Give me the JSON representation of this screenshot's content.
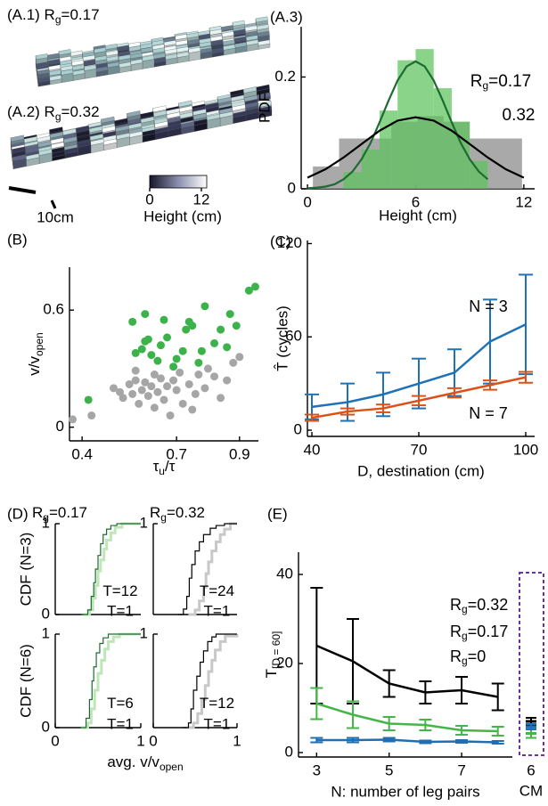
{
  "terrain": [
    {
      "label": [
        "(A.1) R",
        "g",
        "=0.17"
      ]
    },
    {
      "label": [
        "(A.2) R",
        "g",
        "=0.32"
      ]
    }
  ],
  "colorbar": {
    "ticks": [
      0,
      12
    ],
    "label": "Height (cm)"
  },
  "scale_bar": "10cm",
  "panel_d": {
    "label": "(D)",
    "column_titles": [
      [
        "R",
        "g",
        "=0.17"
      ],
      [
        "R",
        "g",
        "=0.32"
      ]
    ],
    "xlabel": [
      "avg. v/v",
      "open"
    ]
  },
  "chart_data": [
    {
      "type": "histogram",
      "label": "(A.3)",
      "ylabel": "PDF",
      "xlabel": "Height (cm)",
      "xlim": [
        -0.35,
        12.6
      ],
      "xticks": [
        0,
        6,
        12
      ],
      "ylim": [
        0,
        0.29
      ],
      "yticks": [
        0,
        0.2
      ],
      "series": [
        {
          "name": [
            "R",
            "g",
            "=0.17"
          ],
          "color": "#5cc45c",
          "line_color": "#1e6b32",
          "bins": [
            2,
            3,
            4,
            5,
            6,
            7,
            8,
            9,
            10
          ],
          "counts": [
            0.03,
            0.07,
            0.14,
            0.23,
            0.25,
            0.18,
            0.12,
            0.05
          ],
          "curve_x": [
            0,
            0.5,
            1,
            1.5,
            2,
            2.5,
            3,
            3.5,
            4,
            4.5,
            5,
            5.5,
            6,
            6.5,
            7,
            7.5,
            8,
            8.5,
            9,
            9.5,
            10
          ],
          "curve_values": [
            0.001,
            0.002,
            0.004,
            0.008,
            0.017,
            0.031,
            0.053,
            0.082,
            0.119,
            0.158,
            0.194,
            0.219,
            0.228,
            0.219,
            0.194,
            0.158,
            0.119,
            0.082,
            0.053,
            0.031,
            0.017
          ]
        },
        {
          "name": "0.32",
          "color": "#9a9a9a",
          "line_color": "#000000",
          "bins": [
            0.3,
            1.75,
            3.2,
            4.65,
            6.1,
            7.55,
            9,
            10.45,
            11.9
          ],
          "counts": [
            0.04,
            0.09,
            0.09,
            0.12,
            0.13,
            0.12,
            0.09,
            0.09
          ],
          "curve_x": [
            0,
            1,
            2,
            3,
            4,
            5,
            6,
            7,
            8,
            9,
            10,
            11,
            12
          ],
          "curve_values": [
            0.02,
            0.035,
            0.056,
            0.08,
            0.104,
            0.122,
            0.128,
            0.122,
            0.104,
            0.08,
            0.056,
            0.035,
            0.02
          ]
        }
      ]
    },
    {
      "type": "scatter",
      "label": "(B)",
      "ylabel": [
        "v/v",
        "open"
      ],
      "xlabel": [
        "τ",
        "u",
        "/τ"
      ],
      "xlim": [
        0.36,
        0.96
      ],
      "xticks": [
        0.4,
        0.7,
        0.9
      ],
      "ylim": [
        -0.07,
        0.82
      ],
      "yticks": [
        0,
        0.6
      ],
      "series": [
        {
          "color": "#3cb34a",
          "x": [
            0.42,
            0.56,
            0.57,
            0.59,
            0.6,
            0.61,
            0.62,
            0.64,
            0.65,
            0.67,
            0.69,
            0.7,
            0.72,
            0.73,
            0.74,
            0.75,
            0.77,
            0.78,
            0.79,
            0.82,
            0.84,
            0.86,
            0.87,
            0.89,
            0.93,
            0.95,
            0.6,
            0.66
          ],
          "values": [
            0.14,
            0.54,
            0.38,
            0.4,
            0.44,
            0.45,
            0.37,
            0.34,
            0.42,
            0.46,
            0.31,
            0.35,
            0.39,
            0.5,
            0.54,
            0.52,
            0.33,
            0.39,
            0.62,
            0.43,
            0.5,
            0.41,
            0.58,
            0.52,
            0.7,
            0.72,
            0.58,
            0.55
          ]
        },
        {
          "color": "#a6a6a6",
          "x": [
            0.37,
            0.43,
            0.5,
            0.52,
            0.53,
            0.55,
            0.56,
            0.57,
            0.58,
            0.59,
            0.6,
            0.61,
            0.62,
            0.63,
            0.64,
            0.65,
            0.66,
            0.67,
            0.68,
            0.7,
            0.71,
            0.72,
            0.74,
            0.75,
            0.77,
            0.79,
            0.8,
            0.82,
            0.84,
            0.86,
            0.88,
            0.9,
            0.57,
            0.63,
            0.69,
            0.76
          ],
          "values": [
            0.04,
            0.06,
            0.2,
            0.18,
            0.15,
            0.22,
            0.17,
            0.24,
            0.12,
            0.19,
            0.23,
            0.16,
            0.21,
            0.1,
            0.18,
            0.25,
            0.14,
            0.21,
            0.06,
            0.19,
            0.28,
            0.12,
            0.22,
            0.09,
            0.27,
            0.2,
            0.3,
            0.26,
            0.15,
            0.24,
            0.33,
            0.36,
            0.29,
            0.27,
            0.24,
            0.17
          ]
        }
      ]
    },
    {
      "type": "errorline",
      "label": "(C)",
      "ylabel": "T̂ (cycles)",
      "xlabel": "D, destination (cm)",
      "xlim": [
        38.75,
        102.5
      ],
      "xticks": [
        40,
        70,
        100
      ],
      "ylim": [
        -4,
        122
      ],
      "yticks": [
        0,
        60,
        120
      ],
      "x": [
        40,
        50,
        60,
        70,
        80,
        90,
        100
      ],
      "series": [
        {
          "name": "N = 3",
          "color": "#2171b5",
          "values": [
            15,
            18,
            23,
            30,
            37,
            57,
            68
          ],
          "errors": [
            8,
            12,
            14,
            16,
            15,
            27,
            32
          ]
        },
        {
          "name": "N = 7",
          "color": "#d95319",
          "values": [
            8,
            12,
            14,
            19,
            24,
            29,
            34
          ],
          "errors": [
            2,
            2,
            2.5,
            3,
            3,
            3,
            3.5
          ]
        }
      ]
    },
    {
      "type": "step",
      "ylabel": "CDF (N=3)",
      "xlim": [
        0,
        1
      ],
      "ylim": [
        0,
        1
      ],
      "yticks": [
        0,
        1
      ],
      "series": [
        {
          "name": "T=12",
          "color": "#1e6b32",
          "x": [
            0.3,
            0.38,
            0.42,
            0.45,
            0.47,
            0.5,
            0.53,
            0.56,
            0.6,
            0.65,
            0.72,
            1
          ],
          "values": [
            0,
            0.05,
            0.2,
            0.35,
            0.5,
            0.65,
            0.78,
            0.88,
            0.94,
            0.98,
            1,
            1
          ]
        },
        {
          "name": "T=1",
          "color": "#bfe6b8",
          "x": [
            0.33,
            0.4,
            0.44,
            0.47,
            0.5,
            0.53,
            0.57,
            0.6,
            0.65,
            0.7,
            0.78,
            1
          ],
          "values": [
            0,
            0.05,
            0.18,
            0.32,
            0.48,
            0.6,
            0.72,
            0.82,
            0.9,
            0.96,
            1,
            1
          ]
        }
      ]
    },
    {
      "type": "step",
      "xlim": [
        0,
        1
      ],
      "ylim": [
        0,
        1
      ],
      "yticks": [
        1
      ],
      "series": [
        {
          "name": "T=24",
          "color": "#000000",
          "x": [
            0.3,
            0.36,
            0.4,
            0.43,
            0.46,
            0.5,
            0.55,
            0.6,
            0.68,
            0.75,
            0.85,
            1
          ],
          "values": [
            0,
            0.06,
            0.2,
            0.4,
            0.55,
            0.7,
            0.8,
            0.88,
            0.95,
            0.98,
            1,
            1
          ]
        },
        {
          "name": "T=1",
          "color": "#c8c8c8",
          "x": [
            0.42,
            0.5,
            0.55,
            0.6,
            0.63,
            0.66,
            0.7,
            0.75,
            0.8,
            0.85,
            0.92,
            1
          ],
          "values": [
            0,
            0.05,
            0.15,
            0.3,
            0.45,
            0.58,
            0.7,
            0.8,
            0.88,
            0.94,
            1,
            1
          ]
        }
      ]
    },
    {
      "type": "step",
      "ylabel": "CDF (N=6)",
      "xlim": [
        0,
        1
      ],
      "ylim": [
        0,
        1
      ],
      "xticks": [
        0,
        1
      ],
      "yticks": [
        0,
        1
      ],
      "series": [
        {
          "name": "T=6",
          "color": "#1e6b32",
          "x": [
            0.3,
            0.36,
            0.4,
            0.43,
            0.45,
            0.48,
            0.52,
            0.56,
            0.62,
            0.7,
            1
          ],
          "values": [
            0,
            0.1,
            0.3,
            0.5,
            0.65,
            0.8,
            0.9,
            0.96,
            1,
            1,
            1
          ]
        },
        {
          "name": "T=1",
          "color": "#bfe6b8",
          "x": [
            0.3,
            0.38,
            0.42,
            0.46,
            0.5,
            0.54,
            0.58,
            0.62,
            0.68,
            0.75,
            1
          ],
          "values": [
            0,
            0.05,
            0.2,
            0.4,
            0.58,
            0.72,
            0.84,
            0.92,
            0.97,
            1,
            1
          ]
        }
      ]
    },
    {
      "type": "step",
      "xlim": [
        0,
        1
      ],
      "ylim": [
        0,
        1
      ],
      "xticks": [
        0,
        1
      ],
      "yticks": [
        1
      ],
      "series": [
        {
          "name": "T=12",
          "color": "#000000",
          "x": [
            0.35,
            0.42,
            0.45,
            0.48,
            0.52,
            0.56,
            0.6,
            0.65,
            0.7,
            0.75,
            1
          ],
          "values": [
            0,
            0.05,
            0.2,
            0.4,
            0.55,
            0.7,
            0.82,
            0.92,
            0.97,
            1,
            1
          ]
        },
        {
          "name": "T=1",
          "color": "#c8c8c8",
          "x": [
            0.4,
            0.48,
            0.53,
            0.58,
            0.62,
            0.66,
            0.7,
            0.74,
            0.8,
            0.86,
            1
          ],
          "values": [
            0,
            0.05,
            0.15,
            0.3,
            0.45,
            0.6,
            0.72,
            0.83,
            0.92,
            0.98,
            1
          ]
        }
      ]
    },
    {
      "type": "errorline",
      "label": "(E)",
      "ylabel": [
        "T",
        "[D = 60]"
      ],
      "xlabel": "N: number of leg pairs",
      "xlim": [
        2.5,
        8.4
      ],
      "xticks": [
        3,
        5,
        7
      ],
      "ylim": [
        -1,
        45
      ],
      "yticks": [
        0,
        20,
        40
      ],
      "x": [
        3,
        4,
        5,
        6,
        7,
        8
      ],
      "cm": {
        "label": "6",
        "text": "CM",
        "color": "#7030a0"
      },
      "series": [
        {
          "name": [
            "R",
            "g",
            "=0.32"
          ],
          "color": "#000000",
          "values": [
            24,
            20.5,
            15.5,
            13.5,
            14,
            12.5
          ],
          "errors": [
            13,
            9.5,
            3,
            2.5,
            3,
            3
          ],
          "cm_value": 7,
          "cm_error": 0.8
        },
        {
          "name": [
            "R",
            "g",
            "=0.17"
          ],
          "color": "#45b549",
          "values": [
            11,
            8.5,
            6.5,
            6.2,
            5,
            4.8
          ],
          "errors": [
            3.5,
            3,
            1.5,
            1.2,
            1,
            1
          ],
          "cm_value": 4.3,
          "cm_error": 1
        },
        {
          "name": [
            "R",
            "g",
            "=0"
          ],
          "color": "#1f6fb2",
          "values": [
            2.8,
            2.8,
            2.9,
            2.4,
            2.5,
            2.3
          ],
          "errors": [
            0.5,
            0.5,
            0.4,
            0.3,
            0.3,
            0.3
          ],
          "cm_value": 5.8,
          "cm_error": 0.6
        }
      ]
    }
  ]
}
